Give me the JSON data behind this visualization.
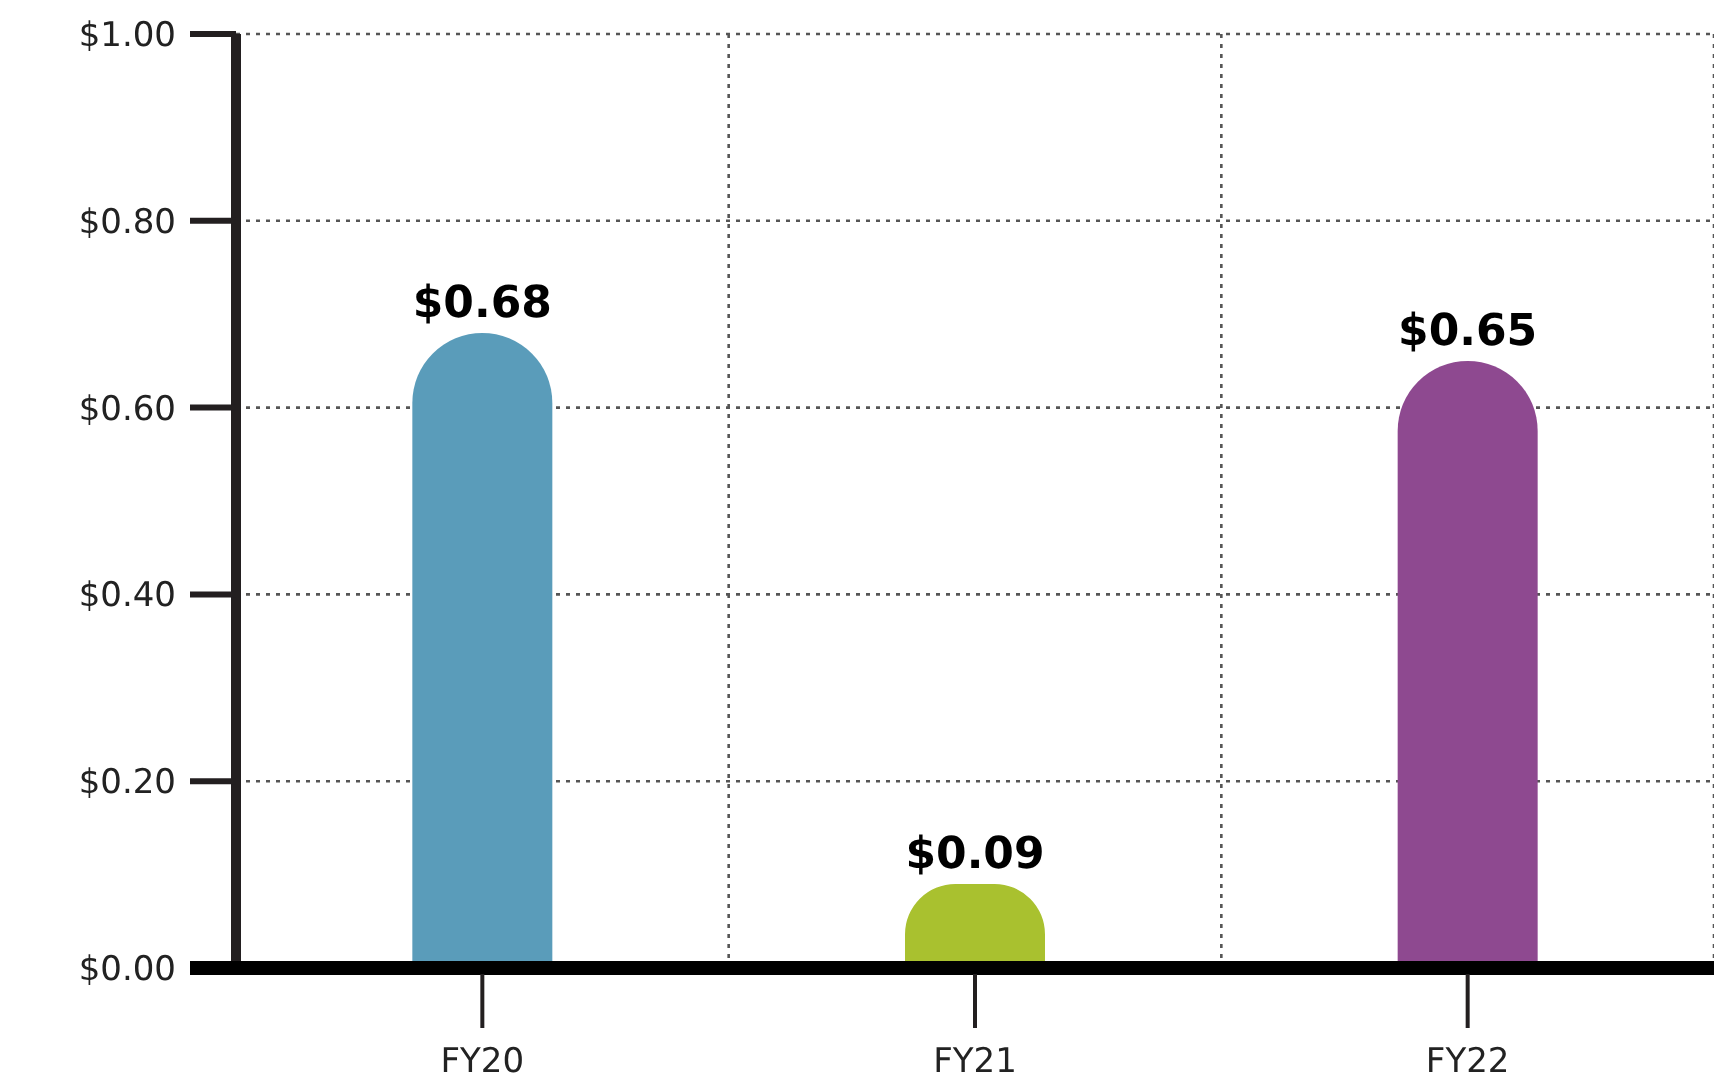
{
  "chart_data": {
    "type": "bar",
    "categories": [
      "FY20",
      "FY21",
      "FY22"
    ],
    "values": [
      0.68,
      0.09,
      0.65
    ],
    "colors": [
      "#5a9cba",
      "#a9c12f",
      "#8e4990"
    ],
    "value_labels": [
      "$0.68",
      "$0.09",
      "$0.65"
    ],
    "ylim": [
      0,
      1
    ],
    "yticks": [
      {
        "value": 0,
        "label": "$0.00"
      },
      {
        "value": 0.2,
        "label": "$0.20"
      },
      {
        "value": 0.4,
        "label": "$0.40"
      },
      {
        "value": 0.6,
        "label": "$0.60"
      },
      {
        "value": 0.8,
        "label": "$0.80"
      },
      {
        "value": 1,
        "label": "$1.00"
      }
    ],
    "grid": true
  }
}
